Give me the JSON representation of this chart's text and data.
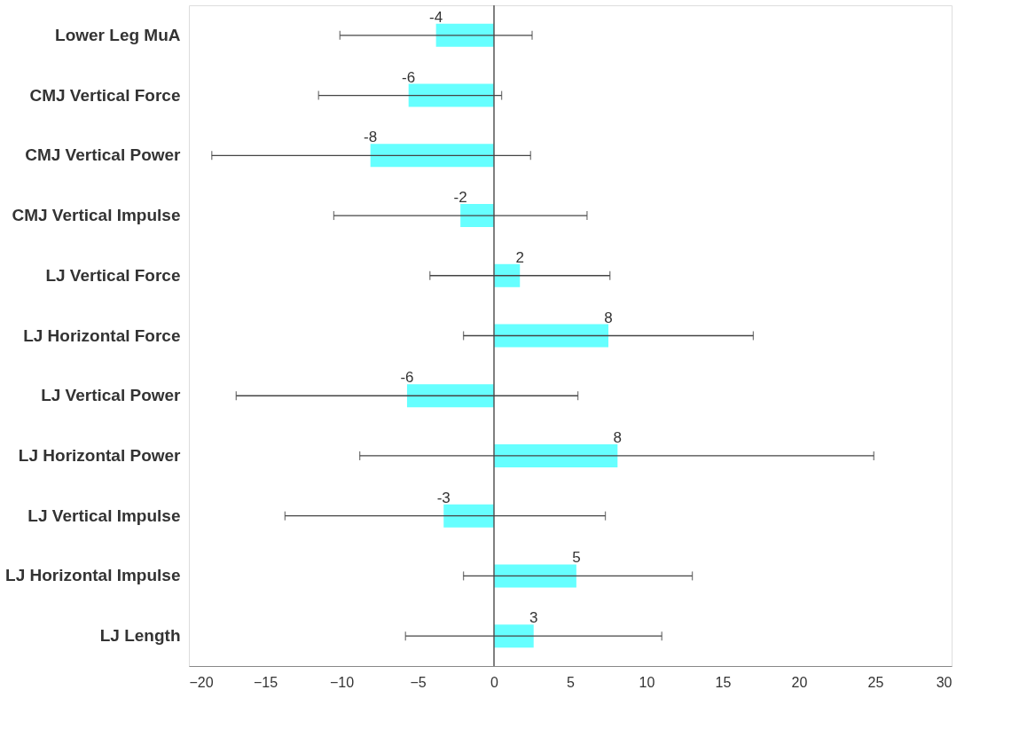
{
  "chart_data": {
    "type": "bar",
    "orientation": "horizontal",
    "categories": [
      "Lower Leg MuA",
      "CMJ Vertical Force",
      "CMJ Vertical Power",
      "CMJ Vertical Impulse",
      "LJ Vertical Force",
      "LJ Horizontal Force",
      "LJ Vertical Power",
      "LJ Horizontal Power",
      "LJ Vertical Impulse",
      "LJ Horizontal Impulse",
      "LJ Length"
    ],
    "values": [
      -3.8,
      -5.6,
      -8.1,
      -2.2,
      1.7,
      7.5,
      -5.7,
      8.1,
      -3.3,
      5.4,
      2.6
    ],
    "errors": [
      [
        -10.1,
        2.5
      ],
      [
        -11.5,
        0.5
      ],
      [
        -18.5,
        2.4
      ],
      [
        -10.5,
        6.1
      ],
      [
        -4.2,
        7.6
      ],
      [
        -2.0,
        17.0
      ],
      [
        -16.9,
        5.5
      ],
      [
        -8.8,
        24.9
      ],
      [
        -13.7,
        7.3
      ],
      [
        -2.0,
        13.0
      ],
      [
        -5.8,
        11.0
      ]
    ],
    "value_labels": [
      "-4",
      "-6",
      "-8",
      "-2",
      "2",
      "8",
      "-6",
      "8",
      "-3",
      "5",
      "3"
    ],
    "color": "#66ffff",
    "xlim": [
      -20,
      30
    ],
    "xticks": [
      -20,
      -15,
      -10,
      -5,
      0,
      5,
      10,
      15,
      20,
      25,
      30
    ],
    "ref_lines": [
      {
        "axis": "x",
        "value": 0
      }
    ],
    "grid": false
  }
}
